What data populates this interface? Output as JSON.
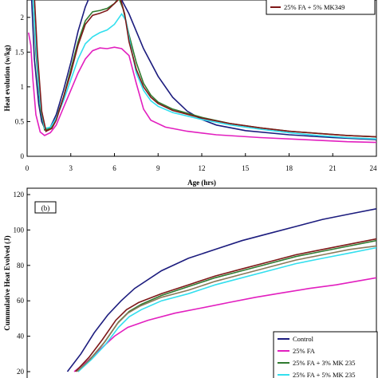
{
  "chart_data": [
    {
      "type": "line",
      "panel_label": "",
      "xlabel": "Age (hrs)",
      "ylabel": "Heat evolution (w/kg)",
      "xlim": [
        0,
        24
      ],
      "ylim": [
        0,
        2.25
      ],
      "x_ticks": [
        "0",
        "3",
        "6",
        "9",
        "12",
        "15",
        "18",
        "21",
        "24"
      ],
      "y_ticks": [
        "0",
        "0.5",
        "1",
        "1.5",
        "2"
      ],
      "grid": false,
      "legend_position": "top-right",
      "legend_entries": [
        "25% FA + 5% MK349"
      ],
      "series": [
        {
          "name": "Control",
          "color": "#1c1c7e",
          "points": [
            [
              0.3,
              2.3
            ],
            [
              0.5,
              1.4
            ],
            [
              0.8,
              0.75
            ],
            [
              1.0,
              0.5
            ],
            [
              1.3,
              0.36
            ],
            [
              1.6,
              0.42
            ],
            [
              2.0,
              0.6
            ],
            [
              2.5,
              0.95
            ],
            [
              3.0,
              1.35
            ],
            [
              3.5,
              1.8
            ],
            [
              4.0,
              2.15
            ],
            [
              4.3,
              2.3
            ],
            [
              6.2,
              2.3
            ],
            [
              6.5,
              2.25
            ],
            [
              7.0,
              2.05
            ],
            [
              7.5,
              1.8
            ],
            [
              8.0,
              1.55
            ],
            [
              9.0,
              1.15
            ],
            [
              10.0,
              0.85
            ],
            [
              11.0,
              0.65
            ],
            [
              12.0,
              0.53
            ],
            [
              13.0,
              0.45
            ],
            [
              15.0,
              0.37
            ],
            [
              18.0,
              0.31
            ],
            [
              21.0,
              0.27
            ],
            [
              24.0,
              0.24
            ]
          ]
        },
        {
          "name": "25% FA",
          "color": "#e21fbf",
          "points": [
            [
              0.1,
              1.78
            ],
            [
              0.25,
              1.6
            ],
            [
              0.4,
              1.1
            ],
            [
              0.6,
              0.6
            ],
            [
              0.9,
              0.35
            ],
            [
              1.2,
              0.3
            ],
            [
              1.6,
              0.34
            ],
            [
              2.0,
              0.45
            ],
            [
              2.5,
              0.7
            ],
            [
              3.0,
              0.95
            ],
            [
              3.5,
              1.2
            ],
            [
              4.0,
              1.4
            ],
            [
              4.5,
              1.52
            ],
            [
              5.0,
              1.56
            ],
            [
              5.5,
              1.55
            ],
            [
              6.0,
              1.57
            ],
            [
              6.5,
              1.55
            ],
            [
              7.0,
              1.45
            ],
            [
              7.5,
              1.05
            ],
            [
              8.0,
              0.68
            ],
            [
              8.5,
              0.52
            ],
            [
              9.5,
              0.42
            ],
            [
              11.0,
              0.36
            ],
            [
              13.0,
              0.31
            ],
            [
              16.0,
              0.27
            ],
            [
              19.0,
              0.24
            ],
            [
              22.0,
              0.21
            ],
            [
              24.0,
              0.2
            ]
          ]
        },
        {
          "name": "25% FA + 3% MK 235",
          "color": "#2f7a2f",
          "points": [
            [
              0.4,
              2.3
            ],
            [
              0.6,
              1.5
            ],
            [
              0.9,
              0.7
            ],
            [
              1.2,
              0.38
            ],
            [
              1.6,
              0.4
            ],
            [
              2.0,
              0.55
            ],
            [
              2.5,
              0.85
            ],
            [
              3.0,
              1.25
            ],
            [
              3.5,
              1.65
            ],
            [
              4.0,
              1.95
            ],
            [
              4.5,
              2.08
            ],
            [
              5.0,
              2.1
            ],
            [
              5.5,
              2.13
            ],
            [
              6.0,
              2.2
            ],
            [
              6.3,
              2.28
            ],
            [
              6.6,
              2.12
            ],
            [
              7.0,
              1.75
            ],
            [
              7.5,
              1.35
            ],
            [
              8.0,
              1.05
            ],
            [
              8.5,
              0.88
            ],
            [
              9.0,
              0.78
            ],
            [
              10.0,
              0.68
            ],
            [
              12.0,
              0.56
            ],
            [
              14.0,
              0.47
            ],
            [
              16.0,
              0.41
            ],
            [
              18.0,
              0.36
            ],
            [
              20.0,
              0.33
            ],
            [
              22.0,
              0.3
            ],
            [
              24.0,
              0.28
            ]
          ]
        },
        {
          "name": "25% FA + 5% MK 235",
          "color": "#33dfee",
          "points": [
            [
              0.4,
              2.3
            ],
            [
              0.6,
              1.6
            ],
            [
              0.9,
              0.75
            ],
            [
              1.2,
              0.4
            ],
            [
              1.6,
              0.42
            ],
            [
              2.0,
              0.55
            ],
            [
              2.5,
              0.8
            ],
            [
              3.0,
              1.1
            ],
            [
              3.5,
              1.4
            ],
            [
              4.0,
              1.62
            ],
            [
              4.5,
              1.72
            ],
            [
              5.0,
              1.78
            ],
            [
              5.5,
              1.82
            ],
            [
              6.0,
              1.9
            ],
            [
              6.5,
              2.05
            ],
            [
              6.8,
              1.95
            ],
            [
              7.1,
              1.6
            ],
            [
              7.5,
              1.2
            ],
            [
              8.0,
              0.95
            ],
            [
              8.5,
              0.8
            ],
            [
              9.0,
              0.72
            ],
            [
              10.0,
              0.63
            ],
            [
              12.0,
              0.53
            ],
            [
              14.0,
              0.45
            ],
            [
              16.0,
              0.39
            ],
            [
              18.0,
              0.34
            ],
            [
              20.0,
              0.3
            ],
            [
              22.0,
              0.27
            ],
            [
              24.0,
              0.25
            ]
          ]
        },
        {
          "name": "25% FA + 5% MK349",
          "color": "#7e1818",
          "points": [
            [
              0.5,
              2.3
            ],
            [
              0.7,
              1.5
            ],
            [
              1.0,
              0.65
            ],
            [
              1.3,
              0.36
            ],
            [
              1.7,
              0.4
            ],
            [
              2.0,
              0.52
            ],
            [
              2.5,
              0.85
            ],
            [
              3.0,
              1.2
            ],
            [
              3.5,
              1.6
            ],
            [
              4.0,
              1.9
            ],
            [
              4.5,
              2.03
            ],
            [
              5.0,
              2.06
            ],
            [
              5.5,
              2.1
            ],
            [
              6.0,
              2.2
            ],
            [
              6.4,
              2.28
            ],
            [
              6.7,
              2.05
            ],
            [
              7.0,
              1.65
            ],
            [
              7.5,
              1.25
            ],
            [
              8.0,
              1.0
            ],
            [
              8.5,
              0.85
            ],
            [
              9.0,
              0.76
            ],
            [
              10.0,
              0.66
            ],
            [
              12.0,
              0.55
            ],
            [
              14.0,
              0.47
            ],
            [
              16.0,
              0.41
            ],
            [
              18.0,
              0.36
            ],
            [
              20.0,
              0.33
            ],
            [
              22.0,
              0.3
            ],
            [
              24.0,
              0.28
            ]
          ]
        }
      ]
    },
    {
      "type": "line",
      "panel_label": "(b)",
      "xlabel": "",
      "ylabel": "Cummulative Heat Evolved (J)",
      "ylim": [
        20,
        120
      ],
      "y_ticks": [
        "20",
        "40",
        "60",
        "80",
        "100",
        "120"
      ],
      "grid": false,
      "legend_position": "bottom-right",
      "legend_entries": [
        "Control",
        "25% FA",
        "25% FA + 3% MK 235",
        "25% FA + 5% MK 235"
      ],
      "series": [
        {
          "name": "Control",
          "color": "#1c1c7e",
          "points": [
            [
              3.0,
              20
            ],
            [
              4.0,
              30
            ],
            [
              5.0,
              42
            ],
            [
              6.0,
              52
            ],
            [
              7.0,
              60
            ],
            [
              8.0,
              67
            ],
            [
              10.0,
              77
            ],
            [
              12.0,
              84
            ],
            [
              14.0,
              89
            ],
            [
              16.0,
              94
            ],
            [
              18.0,
              98
            ],
            [
              20.0,
              102
            ],
            [
              22.0,
              106
            ],
            [
              24.0,
              109
            ],
            [
              26.0,
              112
            ]
          ]
        },
        {
          "name": "25% FA",
          "color": "#e21fbf",
          "points": [
            [
              3.5,
              20
            ],
            [
              4.5,
              26
            ],
            [
              5.5,
              33
            ],
            [
              6.5,
              40
            ],
            [
              7.5,
              45
            ],
            [
              9.0,
              49
            ],
            [
              11.0,
              53
            ],
            [
              13.0,
              56
            ],
            [
              15.0,
              59
            ],
            [
              17.0,
              62
            ],
            [
              19.0,
              64.5
            ],
            [
              21.0,
              67
            ],
            [
              23.0,
              69
            ],
            [
              26.0,
              73
            ]
          ]
        },
        {
          "name": "25% FA + 3% MK 235",
          "color": "#2f7a2f",
          "points": [
            [
              3.8,
              20
            ],
            [
              4.8,
              28
            ],
            [
              5.8,
              37
            ],
            [
              6.8,
              48
            ],
            [
              7.6,
              54
            ],
            [
              8.5,
              58
            ],
            [
              10.0,
              63
            ],
            [
              12.0,
              68
            ],
            [
              14.0,
              73
            ],
            [
              16.0,
              77
            ],
            [
              18.0,
              81
            ],
            [
              20.0,
              85
            ],
            [
              22.0,
              88
            ],
            [
              24.0,
              91
            ],
            [
              26.0,
              94
            ]
          ]
        },
        {
          "name": "25% FA + 5% MK 235",
          "color": "#33dfee",
          "points": [
            [
              3.8,
              20
            ],
            [
              4.8,
              27
            ],
            [
              5.8,
              35
            ],
            [
              6.8,
              45
            ],
            [
              7.6,
              51
            ],
            [
              8.5,
              55
            ],
            [
              10.0,
              60
            ],
            [
              12.0,
              64
            ],
            [
              14.0,
              69
            ],
            [
              16.0,
              73
            ],
            [
              18.0,
              77
            ],
            [
              20.0,
              81
            ],
            [
              22.0,
              84
            ],
            [
              24.0,
              87
            ],
            [
              26.0,
              90
            ]
          ]
        },
        {
          "name": "",
          "color": "#7e1818",
          "points": [
            [
              3.6,
              20
            ],
            [
              4.6,
              28
            ],
            [
              5.6,
              38
            ],
            [
              6.6,
              49
            ],
            [
              7.4,
              55
            ],
            [
              8.3,
              59
            ],
            [
              10.0,
              64
            ],
            [
              12.0,
              69
            ],
            [
              14.0,
              74
            ],
            [
              16.0,
              78
            ],
            [
              18.0,
              82
            ],
            [
              20.0,
              86
            ],
            [
              22.0,
              89
            ],
            [
              24.0,
              92
            ],
            [
              26.0,
              95
            ]
          ]
        },
        {
          "name": "",
          "color": "#8a7a5a",
          "points": [
            [
              3.7,
              20
            ],
            [
              4.7,
              27
            ],
            [
              5.7,
              36
            ],
            [
              6.7,
              47
            ],
            [
              7.5,
              53
            ],
            [
              8.4,
              57
            ],
            [
              10.0,
              62
            ],
            [
              12.0,
              66
            ],
            [
              14.0,
              71
            ],
            [
              16.0,
              75
            ],
            [
              18.0,
              79
            ],
            [
              20.0,
              83
            ],
            [
              22.0,
              86
            ],
            [
              24.0,
              89
            ],
            [
              26.0,
              91
            ]
          ]
        }
      ]
    }
  ]
}
